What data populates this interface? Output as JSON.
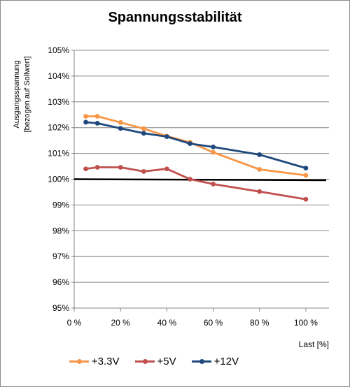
{
  "chart_data": {
    "type": "line",
    "title": "Spannungsstabilität",
    "ylabel_lines": [
      "Ausgangsspannung",
      "[bezogen auf Sollwert]"
    ],
    "xlabel": "Last [%]",
    "x_tick_labels": [
      "0 %",
      "20 %",
      "40 %",
      "60 %",
      "80 %",
      "100 %"
    ],
    "x_ticks": [
      0,
      20,
      40,
      60,
      80,
      100
    ],
    "xlim": [
      0,
      110
    ],
    "y_tick_labels": [
      "95%",
      "96%",
      "97%",
      "98%",
      "99%",
      "100%",
      "101%",
      "102%",
      "103%",
      "104%",
      "105%"
    ],
    "y_ticks": [
      95,
      96,
      97,
      98,
      99,
      100,
      101,
      102,
      103,
      104,
      105
    ],
    "ylim": [
      95,
      105
    ],
    "grid": "horizontal",
    "legend_position": "bottom",
    "reference_line": {
      "y_start": 100.0,
      "y_end": 99.96
    },
    "x": [
      5,
      10,
      20,
      30,
      40,
      50,
      60,
      80,
      100
    ],
    "series": [
      {
        "name": "+3.3V",
        "color": "#f79646",
        "values": [
          102.44,
          102.44,
          102.2,
          101.96,
          101.67,
          101.43,
          101.04,
          100.38,
          100.15
        ]
      },
      {
        "name": "+5V",
        "color": "#c0504d",
        "values": [
          100.4,
          100.46,
          100.46,
          100.3,
          100.4,
          100.0,
          99.81,
          99.52,
          99.22
        ]
      },
      {
        "name": "+12V",
        "color": "#1f497d",
        "values": [
          102.21,
          102.17,
          101.97,
          101.78,
          101.65,
          101.38,
          101.25,
          100.95,
          100.43
        ]
      }
    ]
  }
}
